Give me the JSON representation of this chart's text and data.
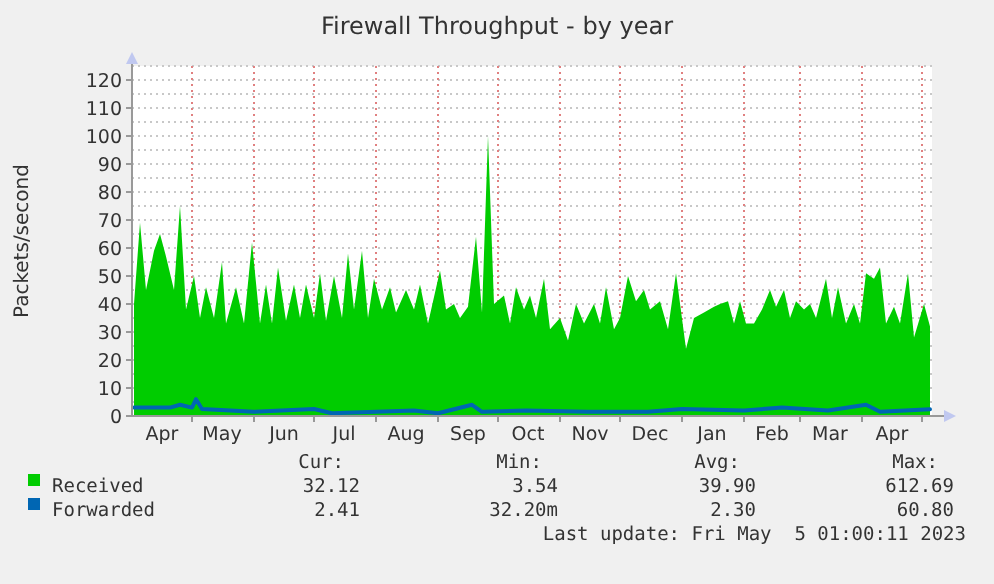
{
  "chart_data": {
    "type": "area",
    "title": "Firewall Throughput - by year",
    "ylabel": "Packets/second",
    "grid": true,
    "legend": "bottom",
    "xlim": [
      "2022-04-01",
      "2023-05-06"
    ],
    "xticks": [
      {
        "value": "2022-04-16",
        "label": "Apr"
      },
      {
        "value": "2022-05-01",
        "label": null
      },
      {
        "value": "2022-05-16",
        "label": "May"
      },
      {
        "value": "2022-06-01",
        "label": null
      },
      {
        "value": "2022-06-16",
        "label": "Jun"
      },
      {
        "value": "2022-07-01",
        "label": null
      },
      {
        "value": "2022-07-16",
        "label": "Jul"
      },
      {
        "value": "2022-08-01",
        "label": null
      },
      {
        "value": "2022-08-16",
        "label": "Aug"
      },
      {
        "value": "2022-09-01",
        "label": null
      },
      {
        "value": "2022-09-16",
        "label": "Sep"
      },
      {
        "value": "2022-10-01",
        "label": null
      },
      {
        "value": "2022-10-16",
        "label": "Oct"
      },
      {
        "value": "2022-11-01",
        "label": null
      },
      {
        "value": "2022-11-16",
        "label": "Nov"
      },
      {
        "value": "2022-12-01",
        "label": null
      },
      {
        "value": "2022-12-16",
        "label": "Dec"
      },
      {
        "value": "2023-01-01",
        "label": null
      },
      {
        "value": "2023-01-16",
        "label": "Jan"
      },
      {
        "value": "2023-02-01",
        "label": null
      },
      {
        "value": "2023-02-15",
        "label": "Feb"
      },
      {
        "value": "2023-03-01",
        "label": null
      },
      {
        "value": "2023-03-16",
        "label": "Mar"
      },
      {
        "value": "2023-04-01",
        "label": null
      },
      {
        "value": "2023-04-16",
        "label": "Apr"
      },
      {
        "value": "2023-05-01",
        "label": null
      }
    ],
    "ylim": [
      0,
      125
    ],
    "yticks": [
      0,
      {
        "value": 5,
        "label": null
      },
      10,
      {
        "value": 15,
        "label": null
      },
      20,
      {
        "value": 25,
        "label": null
      },
      30,
      {
        "value": 35,
        "label": null
      },
      40,
      {
        "value": 45,
        "label": null
      },
      50,
      {
        "value": 55,
        "label": null
      },
      60,
      {
        "value": 65,
        "label": null
      },
      70,
      {
        "value": 75,
        "label": null
      },
      80,
      {
        "value": 85,
        "label": null
      },
      90,
      {
        "value": 95,
        "label": null
      },
      100,
      {
        "value": 105,
        "label": null
      },
      110,
      {
        "value": 115,
        "label": null
      },
      120,
      {
        "value": 125,
        "label": null
      }
    ],
    "series": [
      {
        "name": "Received",
        "color": "#00cc00",
        "x": [
          "2022-04-02",
          "2022-04-05",
          "2022-04-08",
          "2022-04-12",
          "2022-04-15",
          "2022-04-18",
          "2022-04-22",
          "2022-04-25",
          "2022-04-28",
          "2022-05-02",
          "2022-05-05",
          "2022-05-08",
          "2022-05-12",
          "2022-05-16",
          "2022-05-18",
          "2022-05-23",
          "2022-05-27",
          "2022-05-31",
          "2022-06-04",
          "2022-06-07",
          "2022-06-10",
          "2022-06-13",
          "2022-06-17",
          "2022-06-21",
          "2022-06-24",
          "2022-06-27",
          "2022-07-01",
          "2022-07-04",
          "2022-07-07",
          "2022-07-11",
          "2022-07-15",
          "2022-07-18",
          "2022-07-21",
          "2022-07-25",
          "2022-07-28",
          "2022-07-31",
          "2022-08-04",
          "2022-08-08",
          "2022-08-11",
          "2022-08-16",
          "2022-08-20",
          "2022-08-23",
          "2022-08-27",
          "2022-09-02",
          "2022-09-05",
          "2022-09-09",
          "2022-09-12",
          "2022-09-16",
          "2022-09-20",
          "2022-09-23",
          "2022-09-26",
          "2022-09-29",
          "2022-10-04",
          "2022-10-07",
          "2022-10-10",
          "2022-10-14",
          "2022-10-17",
          "2022-10-20",
          "2022-10-24",
          "2022-10-27",
          "2022-11-01",
          "2022-11-05",
          "2022-11-09",
          "2022-11-13",
          "2022-11-18",
          "2022-11-21",
          "2022-11-24",
          "2022-11-28",
          "2022-12-01",
          "2022-12-05",
          "2022-12-09",
          "2022-12-13",
          "2022-12-16",
          "2022-12-21",
          "2022-12-25",
          "2022-12-29",
          "2023-01-03",
          "2023-01-07",
          "2023-01-12",
          "2023-01-17",
          "2023-01-20",
          "2023-01-24",
          "2023-01-27",
          "2023-01-30",
          "2023-02-02",
          "2023-02-06",
          "2023-02-10",
          "2023-02-14",
          "2023-02-17",
          "2023-02-21",
          "2023-02-24",
          "2023-02-27",
          "2023-03-03",
          "2023-03-06",
          "2023-03-09",
          "2023-03-14",
          "2023-03-17",
          "2023-03-20",
          "2023-03-24",
          "2023-03-28",
          "2023-03-31",
          "2023-04-03",
          "2023-04-07",
          "2023-04-10",
          "2023-04-13",
          "2023-04-17",
          "2023-04-20",
          "2023-04-24",
          "2023-04-27",
          "2023-05-02",
          "2023-05-05"
        ],
        "values": [
          40,
          69,
          45,
          59,
          65,
          57,
          45,
          75,
          38,
          50,
          35,
          46,
          35,
          55,
          33,
          46,
          33,
          62,
          33,
          47,
          33,
          53,
          34,
          47,
          35,
          47,
          35,
          51,
          34,
          50,
          35,
          58,
          38,
          59,
          35,
          49,
          38,
          46,
          37,
          45,
          38,
          47,
          33,
          52,
          38,
          40,
          35,
          39,
          64,
          37,
          100,
          40,
          43,
          33,
          46,
          38,
          43,
          35,
          49,
          31,
          35,
          27,
          40,
          33,
          40,
          33,
          46,
          31,
          35,
          50,
          41,
          45,
          38,
          41,
          31,
          51,
          24,
          35,
          37,
          39,
          40,
          41,
          33,
          41,
          33,
          33,
          38,
          45,
          39,
          45,
          35,
          41,
          38,
          40,
          35,
          49,
          35,
          46,
          33,
          40,
          33,
          51,
          49,
          53,
          33,
          39,
          33,
          51,
          28,
          40,
          32
        ]
      },
      {
        "name": "Forwarded",
        "type": "line",
        "color": "#0066b3",
        "x": [
          "2022-04-02",
          "2022-04-20",
          "2022-04-25",
          "2022-05-01",
          "2022-05-03",
          "2022-05-06",
          "2022-06-01",
          "2022-07-01",
          "2022-07-10",
          "2022-08-01",
          "2022-08-20",
          "2022-09-01",
          "2022-09-18",
          "2022-09-23",
          "2022-10-15",
          "2022-11-15",
          "2022-12-15",
          "2023-01-01",
          "2023-02-01",
          "2023-02-20",
          "2023-03-15",
          "2023-04-03",
          "2023-04-10",
          "2023-05-05"
        ],
        "values": [
          3,
          3,
          4,
          3,
          6,
          2.5,
          1.5,
          2.5,
          1,
          1.5,
          2,
          1,
          4,
          1.5,
          2,
          1.5,
          1.5,
          2.5,
          2,
          3,
          2,
          4,
          1.5,
          2.4
        ]
      }
    ],
    "annotations": [
      "Cur:",
      "Min:",
      "Avg:",
      "Max:",
      "32.12",
      "3.54",
      "39.90",
      "612.69",
      "2.41",
      "32.20m",
      "2.30",
      "60.80",
      "Last update: Fri May  5 01:00:11 2023"
    ]
  }
}
